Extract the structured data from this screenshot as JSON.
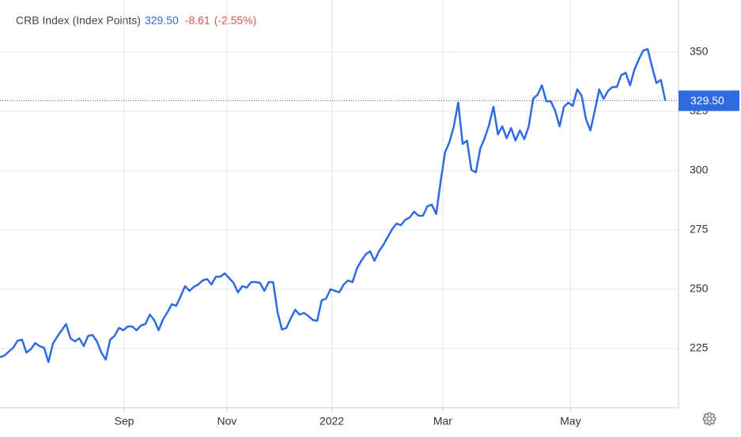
{
  "chart_data": {
    "type": "line",
    "title": "CRB Index (Index Points)",
    "last_price": {
      "value": 329.5,
      "label": "329.50"
    },
    "change": -8.61,
    "change_pct": {
      "value": -2.55,
      "label": "(-2.55%)"
    },
    "series": [
      {
        "name": "CRB Index",
        "color": "#2f6be0",
        "values": [
          221.3,
          222,
          223.7,
          225.3,
          228.3,
          228.7,
          223.3,
          224.7,
          227.3,
          226,
          225.3,
          219.3,
          227,
          230,
          232.7,
          235.3,
          229.3,
          228,
          229.3,
          226,
          230.3,
          230.7,
          228,
          223.3,
          220.3,
          228.7,
          230.3,
          233.7,
          232.7,
          234.3,
          234.3,
          232.7,
          234.7,
          235.3,
          239.3,
          237,
          232.7,
          237.3,
          240.3,
          243.7,
          243,
          247,
          251.3,
          249.3,
          251,
          252,
          253.7,
          254.3,
          252,
          255.3,
          255.3,
          256.7,
          254.7,
          252.7,
          248.7,
          251.3,
          250.7,
          253,
          253,
          252.7,
          249.3,
          253,
          253,
          240.3,
          233,
          233.7,
          237.7,
          241.3,
          239.3,
          240,
          238.7,
          237,
          236.7,
          245.3,
          246,
          250,
          249.3,
          248.7,
          252,
          253.7,
          253,
          258.7,
          262,
          264.7,
          266,
          262,
          266,
          268.7,
          272,
          275.3,
          277.7,
          277,
          279.3,
          280.3,
          282.7,
          281,
          281,
          285,
          285.7,
          281.7,
          295.3,
          307.7,
          312,
          318.7,
          328.7,
          311.3,
          312.7,
          300.3,
          299.3,
          309.3,
          313.7,
          319.3,
          327,
          315.3,
          318.7,
          313.7,
          318,
          312.7,
          317,
          313.3,
          318.7,
          330.3,
          332,
          336,
          329.3,
          329.3,
          325.3,
          318.7,
          327,
          328.7,
          327.3,
          334.3,
          331.7,
          321.7,
          317,
          325.3,
          334.3,
          330.3,
          333.7,
          335.3,
          335.3,
          340.3,
          341.3,
          336,
          342.7,
          347,
          350.7,
          351.3,
          343.7,
          337,
          338.3,
          329.5
        ]
      }
    ],
    "xlim": [
      0,
      154
    ],
    "xticks": [
      {
        "value": 28.2,
        "label": "Sep"
      },
      {
        "value": 51.5,
        "label": "Nov"
      },
      {
        "value": 75.3,
        "label": "2022"
      },
      {
        "value": 100.5,
        "label": "Mar"
      },
      {
        "value": 129.5,
        "label": "May"
      }
    ],
    "ylim": [
      200,
      372
    ],
    "yticks": [
      225,
      250,
      275,
      300,
      325,
      350
    ],
    "grid": true
  }
}
